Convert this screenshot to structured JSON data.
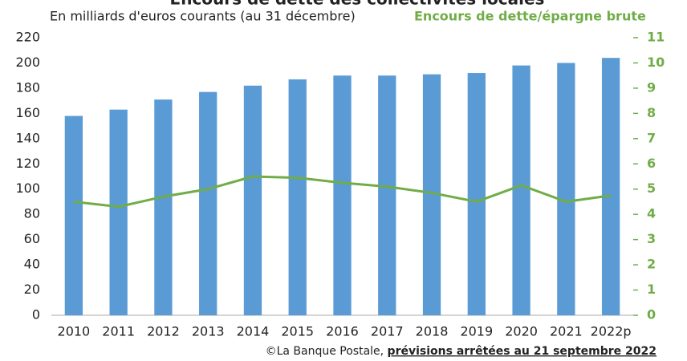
{
  "chart_data": {
    "type": "bar_line",
    "title": "Encours de dette des collectivités locales",
    "subtitle": "En milliards d'euros courants (au 31 décembre)",
    "source": "©La Banque Postale, ",
    "note": "prévisions arrêtées au 21 septembre 2022",
    "categories": [
      "2010",
      "2011",
      "2012",
      "2013",
      "2014",
      "2015",
      "2016",
      "2017",
      "2018",
      "2019",
      "2020",
      "2021",
      "2022p"
    ],
    "series": [
      {
        "name": "Encours de dette",
        "type": "bar",
        "color": "#5b9bd5",
        "axis": "y",
        "values": [
          158,
          163,
          171,
          177,
          182,
          187,
          190,
          190,
          191,
          192,
          198,
          200,
          204
        ]
      },
      {
        "name": "Encours de dette/épargne brute",
        "type": "line",
        "color": "#70ad47",
        "axis": "y2",
        "values": [
          4.5,
          4.3,
          4.7,
          5.0,
          5.5,
          5.45,
          5.25,
          5.1,
          4.85,
          4.5,
          5.15,
          4.5,
          4.75
        ]
      }
    ],
    "ylim": [
      0,
      220
    ],
    "yticks": [
      0,
      20,
      40,
      60,
      80,
      100,
      120,
      140,
      160,
      180,
      200,
      220
    ],
    "y2lim": [
      0,
      11
    ],
    "y2ticks": [
      0,
      1,
      2,
      3,
      4,
      5,
      6,
      7,
      8,
      9,
      10,
      11
    ],
    "grid": false
  }
}
